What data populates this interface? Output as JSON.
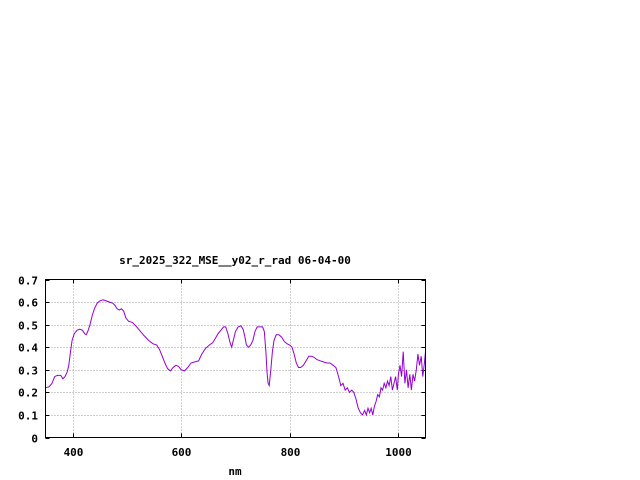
{
  "chart_data": {
    "type": "line",
    "title": "sr_2025_322_MSE__y02_r_rad 06-04-00",
    "xlabel": "nm",
    "ylabel": "",
    "xlim": [
      350,
      1050
    ],
    "ylim": [
      0,
      0.7
    ],
    "x_ticks": [
      400,
      600,
      800,
      1000
    ],
    "x_tick_labels": [
      "400",
      "600",
      "800",
      "1000"
    ],
    "y_ticks": [
      0,
      0.1,
      0.2,
      0.3,
      0.4,
      0.5,
      0.6,
      0.7
    ],
    "y_tick_labels": [
      "0",
      "0.1",
      "0.2",
      "0.3",
      "0.4",
      "0.5",
      "0.6",
      "0.7"
    ],
    "grid": true,
    "line_color": "#9400d3",
    "series": [
      {
        "points": [
          [
            350,
            0.22
          ],
          [
            357,
            0.225
          ],
          [
            362,
            0.24
          ],
          [
            367,
            0.27
          ],
          [
            372,
            0.275
          ],
          [
            378,
            0.275
          ],
          [
            382,
            0.26
          ],
          [
            386,
            0.27
          ],
          [
            390,
            0.29
          ],
          [
            393,
            0.32
          ],
          [
            396,
            0.38
          ],
          [
            399,
            0.43
          ],
          [
            403,
            0.46
          ],
          [
            408,
            0.475
          ],
          [
            413,
            0.48
          ],
          [
            418,
            0.475
          ],
          [
            422,
            0.46
          ],
          [
            425,
            0.455
          ],
          [
            428,
            0.47
          ],
          [
            432,
            0.5
          ],
          [
            436,
            0.54
          ],
          [
            440,
            0.57
          ],
          [
            445,
            0.595
          ],
          [
            450,
            0.605
          ],
          [
            456,
            0.61
          ],
          [
            462,
            0.605
          ],
          [
            468,
            0.6
          ],
          [
            474,
            0.595
          ],
          [
            478,
            0.585
          ],
          [
            482,
            0.57
          ],
          [
            486,
            0.565
          ],
          [
            490,
            0.57
          ],
          [
            494,
            0.56
          ],
          [
            498,
            0.53
          ],
          [
            503,
            0.515
          ],
          [
            510,
            0.51
          ],
          [
            518,
            0.49
          ],
          [
            525,
            0.47
          ],
          [
            532,
            0.45
          ],
          [
            540,
            0.43
          ],
          [
            548,
            0.415
          ],
          [
            555,
            0.41
          ],
          [
            560,
            0.39
          ],
          [
            565,
            0.36
          ],
          [
            570,
            0.33
          ],
          [
            575,
            0.305
          ],
          [
            580,
            0.295
          ],
          [
            585,
            0.31
          ],
          [
            590,
            0.32
          ],
          [
            595,
            0.315
          ],
          [
            600,
            0.3
          ],
          [
            606,
            0.295
          ],
          [
            612,
            0.31
          ],
          [
            618,
            0.33
          ],
          [
            625,
            0.335
          ],
          [
            632,
            0.34
          ],
          [
            638,
            0.37
          ],
          [
            645,
            0.395
          ],
          [
            652,
            0.41
          ],
          [
            658,
            0.42
          ],
          [
            663,
            0.44
          ],
          [
            668,
            0.46
          ],
          [
            673,
            0.475
          ],
          [
            678,
            0.49
          ],
          [
            682,
            0.49
          ],
          [
            686,
            0.46
          ],
          [
            690,
            0.42
          ],
          [
            693,
            0.4
          ],
          [
            696,
            0.43
          ],
          [
            700,
            0.47
          ],
          [
            705,
            0.49
          ],
          [
            710,
            0.495
          ],
          [
            714,
            0.48
          ],
          [
            717,
            0.45
          ],
          [
            720,
            0.41
          ],
          [
            724,
            0.4
          ],
          [
            728,
            0.41
          ],
          [
            732,
            0.43
          ],
          [
            736,
            0.47
          ],
          [
            740,
            0.49
          ],
          [
            745,
            0.49
          ],
          [
            750,
            0.49
          ],
          [
            753,
            0.47
          ],
          [
            756,
            0.38
          ],
          [
            758,
            0.29
          ],
          [
            760,
            0.24
          ],
          [
            762,
            0.23
          ],
          [
            765,
            0.3
          ],
          [
            768,
            0.38
          ],
          [
            771,
            0.43
          ],
          [
            775,
            0.455
          ],
          [
            780,
            0.455
          ],
          [
            785,
            0.445
          ],
          [
            790,
            0.425
          ],
          [
            795,
            0.415
          ],
          [
            800,
            0.41
          ],
          [
            804,
            0.4
          ],
          [
            808,
            0.37
          ],
          [
            812,
            0.33
          ],
          [
            816,
            0.31
          ],
          [
            820,
            0.31
          ],
          [
            825,
            0.32
          ],
          [
            830,
            0.34
          ],
          [
            835,
            0.36
          ],
          [
            840,
            0.36
          ],
          [
            845,
            0.355
          ],
          [
            850,
            0.345
          ],
          [
            856,
            0.34
          ],
          [
            862,
            0.335
          ],
          [
            868,
            0.33
          ],
          [
            874,
            0.33
          ],
          [
            880,
            0.32
          ],
          [
            885,
            0.31
          ],
          [
            890,
            0.27
          ],
          [
            894,
            0.23
          ],
          [
            898,
            0.24
          ],
          [
            902,
            0.21
          ],
          [
            906,
            0.22
          ],
          [
            910,
            0.2
          ],
          [
            914,
            0.21
          ],
          [
            918,
            0.2
          ],
          [
            922,
            0.17
          ],
          [
            926,
            0.13
          ],
          [
            930,
            0.11
          ],
          [
            934,
            0.1
          ],
          [
            938,
            0.12
          ],
          [
            941,
            0.1
          ],
          [
            944,
            0.13
          ],
          [
            947,
            0.11
          ],
          [
            950,
            0.13
          ],
          [
            953,
            0.1
          ],
          [
            956,
            0.14
          ],
          [
            959,
            0.16
          ],
          [
            962,
            0.19
          ],
          [
            965,
            0.18
          ],
          [
            968,
            0.22
          ],
          [
            971,
            0.21
          ],
          [
            974,
            0.24
          ],
          [
            977,
            0.22
          ],
          [
            980,
            0.25
          ],
          [
            983,
            0.23
          ],
          [
            986,
            0.27
          ],
          [
            989,
            0.21
          ],
          [
            992,
            0.24
          ],
          [
            995,
            0.27
          ],
          [
            998,
            0.21
          ],
          [
            1000,
            0.28
          ],
          [
            1003,
            0.32
          ],
          [
            1006,
            0.27
          ],
          [
            1009,
            0.38
          ],
          [
            1012,
            0.24
          ],
          [
            1015,
            0.3
          ],
          [
            1018,
            0.22
          ],
          [
            1021,
            0.28
          ],
          [
            1024,
            0.21
          ],
          [
            1027,
            0.28
          ],
          [
            1030,
            0.25
          ],
          [
            1033,
            0.3
          ],
          [
            1036,
            0.37
          ],
          [
            1039,
            0.32
          ],
          [
            1042,
            0.36
          ],
          [
            1045,
            0.27
          ],
          [
            1048,
            0.33
          ],
          [
            1050,
            0.38
          ]
        ]
      }
    ]
  }
}
